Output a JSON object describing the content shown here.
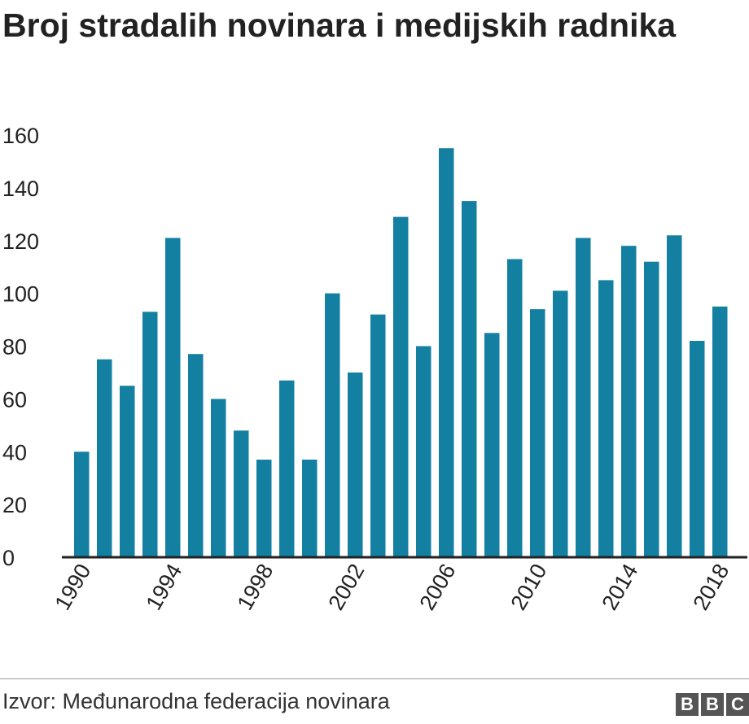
{
  "title": "Broj stradalih novinara i medijskih radnika",
  "source": "Izvor: Međunarodna federacija novinara",
  "logo": {
    "letters": [
      "B",
      "B",
      "C"
    ]
  },
  "colors": {
    "bar": "#1380A1",
    "axis": "#222222",
    "text": "#222222"
  },
  "chart_data": {
    "type": "bar",
    "categories": [
      "1990",
      "1991",
      "1992",
      "1993",
      "1994",
      "1995",
      "1996",
      "1997",
      "1998",
      "1999",
      "2000",
      "2001",
      "2002",
      "2003",
      "2004",
      "2005",
      "2006",
      "2007",
      "2008",
      "2009",
      "2010",
      "2011",
      "2012",
      "2013",
      "2014",
      "2015",
      "2016",
      "2017",
      "2018"
    ],
    "values": [
      40,
      75,
      65,
      93,
      121,
      77,
      60,
      48,
      37,
      67,
      37,
      100,
      70,
      92,
      129,
      80,
      155,
      135,
      85,
      113,
      94,
      101,
      121,
      105,
      118,
      112,
      122,
      82,
      95
    ],
    "x_tick_labels": [
      "1990",
      "1994",
      "1998",
      "2002",
      "2006",
      "2010",
      "2014",
      "2018"
    ],
    "y_ticks": [
      0,
      20,
      40,
      60,
      80,
      100,
      120,
      140,
      160
    ],
    "ylim": [
      0,
      160
    ],
    "xlabel": "",
    "ylabel": "",
    "grid": false,
    "legend": "none"
  }
}
